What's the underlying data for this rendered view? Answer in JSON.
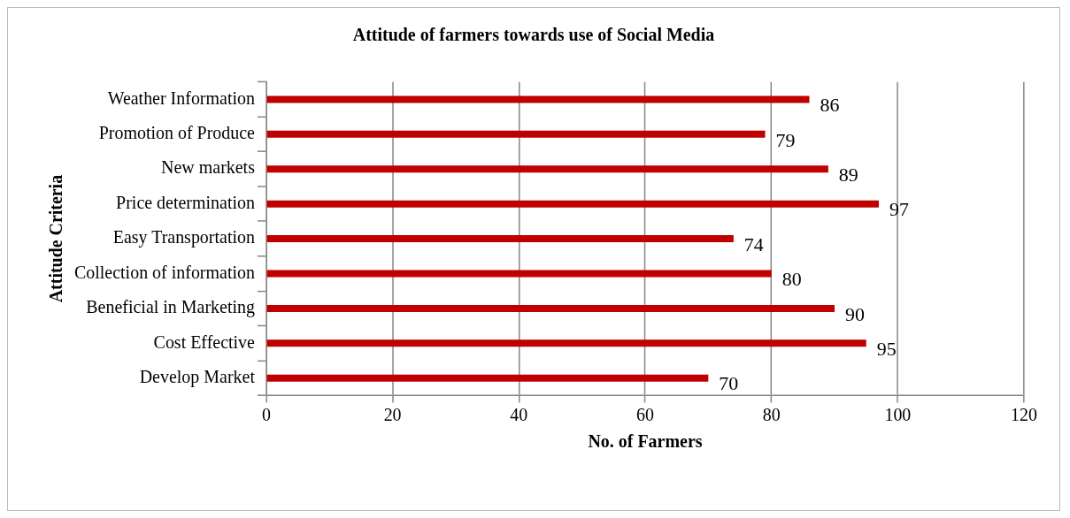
{
  "chart_data": {
    "type": "bar",
    "orientation": "horizontal",
    "title": "Attitude of farmers towards use of Social Media",
    "xlabel": "No. of Farmers",
    "ylabel": "Attitude Criteria",
    "categories": [
      "Weather Information",
      "Promotion of Produce",
      "New markets",
      "Price determination",
      "Easy Transportation",
      "Collection of information",
      "Beneficial in Marketing",
      "Cost Effective",
      "Develop Market"
    ],
    "values": [
      86,
      79,
      89,
      97,
      74,
      80,
      90,
      95,
      70
    ],
    "color": "#c00000",
    "xlim": [
      0,
      120
    ],
    "xticks": [
      0,
      20,
      40,
      60,
      80,
      100,
      120
    ],
    "grid": "x",
    "data_labels": true
  }
}
